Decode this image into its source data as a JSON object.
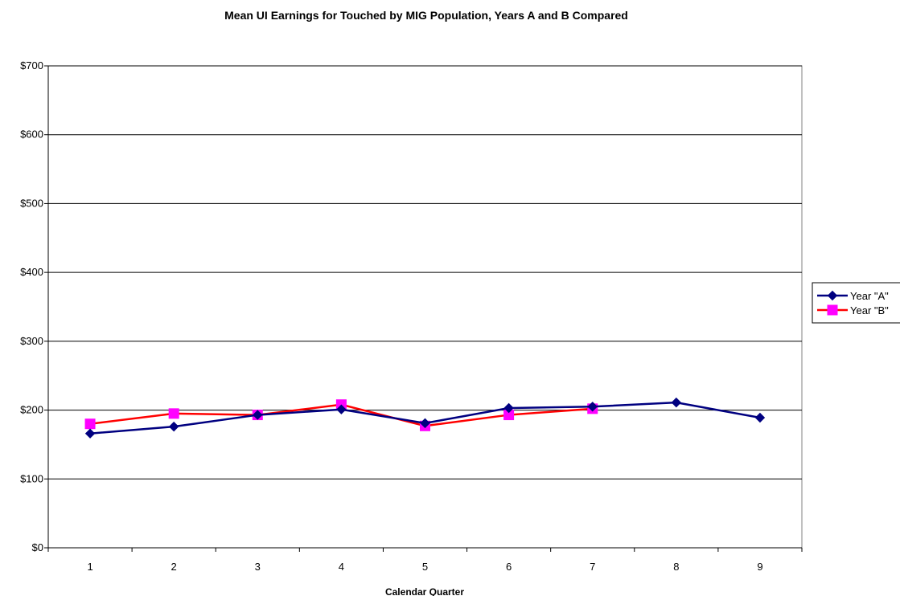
{
  "chart_data": {
    "type": "line",
    "title": "Mean UI Earnings for Touched by MIG Population, Years A and B Compared",
    "xlabel": "Calendar Quarter",
    "ylabel": "",
    "categories": [
      "1",
      "2",
      "3",
      "4",
      "5",
      "6",
      "7",
      "8",
      "9"
    ],
    "ylim": [
      0,
      700
    ],
    "yticks": [
      0,
      100,
      200,
      300,
      400,
      500,
      600,
      700
    ],
    "ytick_labels": [
      "$0",
      "$100",
      "$200",
      "$300",
      "$400",
      "$500",
      "$600",
      "$700"
    ],
    "grid": "horizontal",
    "legend_position": "right",
    "series": [
      {
        "name": "Year \"A\"",
        "values": [
          166,
          176,
          193,
          201,
          181,
          203,
          205,
          211,
          189
        ],
        "color": "#000080",
        "marker": "diamond",
        "marker_color": "#000080"
      },
      {
        "name": "Year \"B\"",
        "values": [
          180,
          195,
          193,
          208,
          177,
          193,
          202,
          null,
          null
        ],
        "color": "#ff0000",
        "marker": "square",
        "marker_color": "#ff00ff"
      }
    ]
  }
}
